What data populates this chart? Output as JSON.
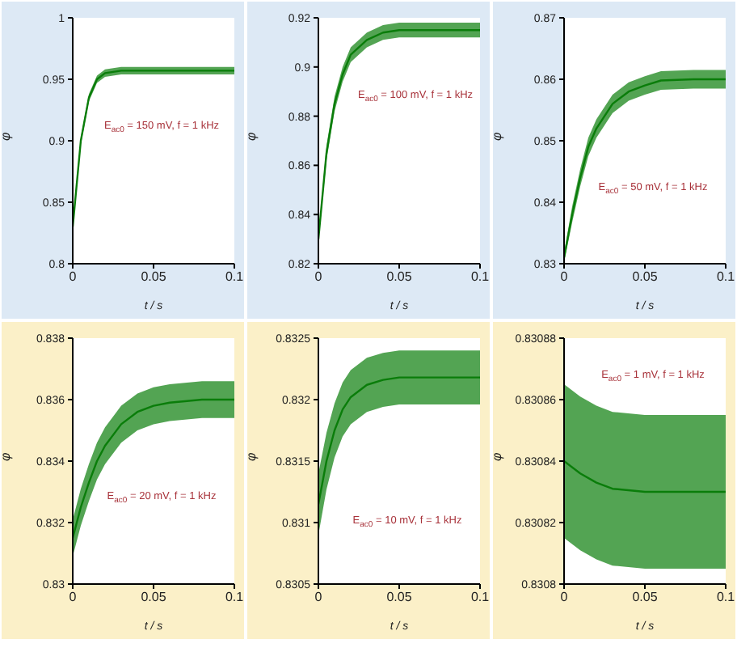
{
  "chart_data": [
    {
      "type": "line",
      "ylabel": "φ",
      "xlabel": "t / s",
      "annotations": [
        "E$_{ac0}$ = 150 mV, f = 1 kHz"
      ],
      "x": [
        0,
        0.005,
        0.01,
        0.015,
        0.02,
        0.03,
        0.04,
        0.05,
        0.06,
        0.08,
        0.1
      ],
      "xlim": [
        0,
        0.1
      ],
      "xticks": [
        0,
        0.05,
        0.1
      ],
      "ylim": [
        0.8,
        1
      ],
      "yticks": [
        0.8,
        0.85,
        0.9,
        0.95,
        1
      ],
      "legend": false,
      "grid": false,
      "series": [
        {
          "color": "#0a7d0a",
          "values": [
            0.83,
            0.9,
            0.935,
            0.95,
            0.955,
            0.957,
            0.957,
            0.957,
            0.957,
            0.957,
            0.957
          ],
          "lower": [
            0.829,
            0.897,
            0.932,
            0.947,
            0.952,
            0.954,
            0.954,
            0.954,
            0.954,
            0.954,
            0.954
          ],
          "upper": [
            0.831,
            0.903,
            0.938,
            0.953,
            0.958,
            0.96,
            0.96,
            0.96,
            0.96,
            0.96,
            0.96
          ]
        }
      ]
    },
    {
      "type": "line",
      "ylabel": "φ",
      "xlabel": "t / s",
      "annotations": [
        "E$_{ac0}$ = 100 mV, f = 1 kHz"
      ],
      "x": [
        0,
        0.005,
        0.01,
        0.015,
        0.02,
        0.03,
        0.04,
        0.05,
        0.06,
        0.08,
        0.1
      ],
      "xlim": [
        0,
        0.1
      ],
      "xticks": [
        0,
        0.05,
        0.1
      ],
      "ylim": [
        0.82,
        0.92
      ],
      "yticks": [
        0.82,
        0.84,
        0.86,
        0.88,
        0.9,
        0.92
      ],
      "legend": false,
      "grid": false,
      "series": [
        {
          "color": "#0a7d0a",
          "values": [
            0.83,
            0.865,
            0.885,
            0.897,
            0.905,
            0.911,
            0.914,
            0.915,
            0.915,
            0.915,
            0.915
          ],
          "lower": [
            0.829,
            0.862,
            0.882,
            0.894,
            0.902,
            0.908,
            0.911,
            0.912,
            0.912,
            0.912,
            0.912
          ],
          "upper": [
            0.831,
            0.868,
            0.888,
            0.9,
            0.908,
            0.914,
            0.917,
            0.918,
            0.918,
            0.918,
            0.918
          ]
        }
      ]
    },
    {
      "type": "line",
      "ylabel": "φ",
      "xlabel": "t / s",
      "annotations": [
        "E$_{ac0}$ = 50 mV, f = 1 kHz"
      ],
      "x": [
        0,
        0.005,
        0.01,
        0.015,
        0.02,
        0.03,
        0.04,
        0.05,
        0.06,
        0.08,
        0.1
      ],
      "xlim": [
        0,
        0.1
      ],
      "xticks": [
        0,
        0.05,
        0.1
      ],
      "ylim": [
        0.83,
        0.87
      ],
      "yticks": [
        0.83,
        0.84,
        0.85,
        0.86,
        0.87
      ],
      "legend": false,
      "grid": false,
      "series": [
        {
          "color": "#0a7d0a",
          "values": [
            0.831,
            0.838,
            0.844,
            0.849,
            0.852,
            0.856,
            0.858,
            0.859,
            0.8598,
            0.86,
            0.86
          ],
          "lower": [
            0.8302,
            0.8367,
            0.8426,
            0.8475,
            0.8505,
            0.8545,
            0.8565,
            0.8575,
            0.8583,
            0.8585,
            0.8585
          ],
          "upper": [
            0.8318,
            0.8393,
            0.8454,
            0.8505,
            0.8535,
            0.8575,
            0.8595,
            0.8605,
            0.8613,
            0.8615,
            0.8615
          ]
        }
      ]
    },
    {
      "type": "line",
      "ylabel": "φ",
      "xlabel": "t / s",
      "annotations": [
        "E$_{ac0}$ = 20 mV, f = 1 kHz"
      ],
      "x": [
        0,
        0.005,
        0.01,
        0.015,
        0.02,
        0.03,
        0.04,
        0.05,
        0.06,
        0.08,
        0.1
      ],
      "xlim": [
        0,
        0.1
      ],
      "xticks": [
        0,
        0.05,
        0.1
      ],
      "ylim": [
        0.83,
        0.838
      ],
      "yticks": [
        0.83,
        0.832,
        0.834,
        0.836,
        0.838
      ],
      "legend": false,
      "grid": false,
      "series": [
        {
          "color": "#0a7d0a",
          "values": [
            0.8315,
            0.8325,
            0.8333,
            0.834,
            0.8345,
            0.8352,
            0.8356,
            0.8358,
            0.8359,
            0.836,
            0.836
          ],
          "lower": [
            0.8309,
            0.8319,
            0.8327,
            0.8334,
            0.8339,
            0.8346,
            0.835,
            0.8352,
            0.8353,
            0.8354,
            0.8354
          ],
          "upper": [
            0.8321,
            0.8331,
            0.8339,
            0.8346,
            0.8351,
            0.8358,
            0.8362,
            0.8364,
            0.8365,
            0.8366,
            0.8366
          ]
        }
      ]
    },
    {
      "type": "line",
      "ylabel": "φ",
      "xlabel": "t / s",
      "annotations": [
        "E$_{ac0}$ = 10 mV, f = 1 kHz"
      ],
      "x": [
        0,
        0.005,
        0.01,
        0.015,
        0.02,
        0.03,
        0.04,
        0.05,
        0.06,
        0.08,
        0.1
      ],
      "xlim": [
        0,
        0.1
      ],
      "xticks": [
        0,
        0.05,
        0.1
      ],
      "ylim": [
        0.8305,
        0.8325
      ],
      "yticks": [
        0.8305,
        0.831,
        0.8315,
        0.832,
        0.8325
      ],
      "legend": false,
      "grid": false,
      "series": [
        {
          "color": "#0a7d0a",
          "values": [
            0.83115,
            0.8315,
            0.83175,
            0.83192,
            0.83202,
            0.83212,
            0.83216,
            0.83218,
            0.83218,
            0.83218,
            0.83218
          ],
          "lower": [
            0.8309,
            0.83127,
            0.83153,
            0.8317,
            0.8318,
            0.8319,
            0.83194,
            0.83196,
            0.83196,
            0.83196,
            0.83196
          ],
          "upper": [
            0.8314,
            0.83173,
            0.83197,
            0.83214,
            0.83224,
            0.83234,
            0.83238,
            0.8324,
            0.8324,
            0.8324,
            0.8324
          ]
        }
      ]
    },
    {
      "type": "line",
      "ylabel": "φ",
      "xlabel": "t / s",
      "annotations": [
        "E$_{ac0}$ = 1 mV, f = 1 kHz"
      ],
      "x": [
        0,
        0.01,
        0.02,
        0.03,
        0.05,
        0.07,
        0.1
      ],
      "xlim": [
        0,
        0.1
      ],
      "xticks": [
        0,
        0.05,
        0.1
      ],
      "ylim": [
        0.8308,
        0.83088
      ],
      "yticks": [
        0.8308,
        0.83082,
        0.83084,
        0.83086,
        0.83088
      ],
      "legend": false,
      "grid": false,
      "series": [
        {
          "color": "#0a7d0a",
          "values": [
            0.83084,
            0.830836,
            0.830833,
            0.830831,
            0.83083,
            0.83083,
            0.83083
          ],
          "lower": [
            0.830815,
            0.830811,
            0.830808,
            0.830806,
            0.830805,
            0.830805,
            0.830805
          ],
          "upper": [
            0.830865,
            0.830861,
            0.830858,
            0.830856,
            0.830855,
            0.830855,
            0.830855
          ]
        }
      ]
    }
  ]
}
